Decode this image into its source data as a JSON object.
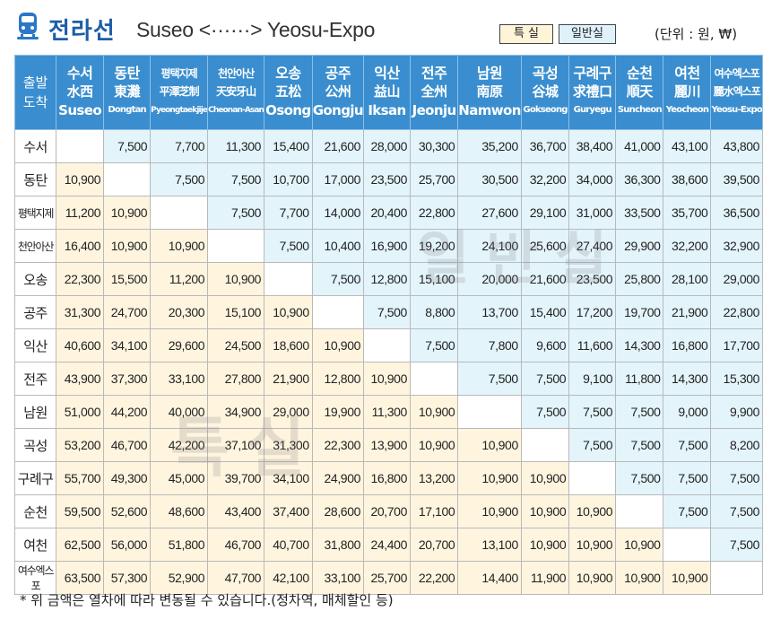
{
  "header": {
    "line_name": "전라선",
    "route": "Suseo <······> Yeosu-Expo",
    "legend_special": "특 실",
    "legend_normal": "일반실",
    "unit": "(단위 : 원, ₩)"
  },
  "corner": {
    "line1": "출발",
    "line2": "도착"
  },
  "stations": [
    {
      "ko": "수서",
      "cn": "水西",
      "en": "Suseo"
    },
    {
      "ko": "동탄",
      "cn": "東灘",
      "en": "Dongtan"
    },
    {
      "ko": "평택지제",
      "cn": "平澤芝制",
      "en": "Pyeongtaekjije"
    },
    {
      "ko": "천안아산",
      "cn": "天安牙山",
      "en": "Cheonan-Asan"
    },
    {
      "ko": "오송",
      "cn": "五松",
      "en": "Osong"
    },
    {
      "ko": "공주",
      "cn": "公州",
      "en": "Gongju"
    },
    {
      "ko": "익산",
      "cn": "益山",
      "en": "Iksan"
    },
    {
      "ko": "전주",
      "cn": "全州",
      "en": "Jeonju"
    },
    {
      "ko": "남원",
      "cn": "南原",
      "en": "Namwon"
    },
    {
      "ko": "곡성",
      "cn": "谷城",
      "en": "Gokseong"
    },
    {
      "ko": "구례구",
      "cn": "求禮口",
      "en": "Guryegu"
    },
    {
      "ko": "순천",
      "cn": "順天",
      "en": "Suncheon"
    },
    {
      "ko": "여천",
      "cn": "麗川",
      "en": "Yeocheon"
    },
    {
      "ko": "여수엑스포",
      "cn": "麗水엑스포",
      "en": "Yeosu-Expo"
    }
  ],
  "fares": [
    [
      "",
      "7,500",
      "7,700",
      "11,300",
      "15,400",
      "21,600",
      "28,000",
      "30,300",
      "35,200",
      "36,700",
      "38,400",
      "41,000",
      "43,100",
      "43,800"
    ],
    [
      "10,900",
      "",
      "7,500",
      "7,500",
      "10,700",
      "17,000",
      "23,500",
      "25,700",
      "30,500",
      "32,200",
      "34,000",
      "36,300",
      "38,600",
      "39,500"
    ],
    [
      "11,200",
      "10,900",
      "",
      "7,500",
      "7,700",
      "14,000",
      "20,400",
      "22,800",
      "27,600",
      "29,100",
      "31,000",
      "33,500",
      "35,700",
      "36,500"
    ],
    [
      "16,400",
      "10,900",
      "10,900",
      "",
      "7,500",
      "10,400",
      "16,900",
      "19,200",
      "24,100",
      "25,600",
      "27,400",
      "29,900",
      "32,200",
      "32,900"
    ],
    [
      "22,300",
      "15,500",
      "11,200",
      "10,900",
      "",
      "7,500",
      "12,800",
      "15,100",
      "20,000",
      "21,600",
      "23,500",
      "25,800",
      "28,100",
      "29,000"
    ],
    [
      "31,300",
      "24,700",
      "20,300",
      "15,100",
      "10,900",
      "",
      "7,500",
      "8,800",
      "13,700",
      "15,400",
      "17,200",
      "19,700",
      "21,900",
      "22,800"
    ],
    [
      "40,600",
      "34,100",
      "29,600",
      "24,500",
      "18,600",
      "10,900",
      "",
      "7,500",
      "7,800",
      "9,600",
      "11,600",
      "14,300",
      "16,800",
      "17,700"
    ],
    [
      "43,900",
      "37,300",
      "33,100",
      "27,800",
      "21,900",
      "12,800",
      "10,900",
      "",
      "7,500",
      "7,500",
      "9,100",
      "11,800",
      "14,300",
      "15,300"
    ],
    [
      "51,000",
      "44,200",
      "40,000",
      "34,900",
      "29,000",
      "19,900",
      "11,300",
      "10,900",
      "",
      "7,500",
      "7,500",
      "7,500",
      "9,000",
      "9,900"
    ],
    [
      "53,200",
      "46,700",
      "42,200",
      "37,100",
      "31,300",
      "22,300",
      "13,900",
      "10,900",
      "10,900",
      "",
      "7,500",
      "7,500",
      "7,500",
      "8,200"
    ],
    [
      "55,700",
      "49,300",
      "45,000",
      "39,700",
      "34,100",
      "24,900",
      "16,800",
      "13,200",
      "10,900",
      "10,900",
      "",
      "7,500",
      "7,500",
      "7,500"
    ],
    [
      "59,500",
      "52,600",
      "48,600",
      "43,400",
      "37,400",
      "28,600",
      "20,700",
      "17,100",
      "10,900",
      "10,900",
      "10,900",
      "",
      "7,500",
      "7,500"
    ],
    [
      "62,500",
      "56,000",
      "51,800",
      "46,700",
      "40,700",
      "31,800",
      "24,400",
      "20,700",
      "13,100",
      "10,900",
      "10,900",
      "10,900",
      "",
      "7,500"
    ],
    [
      "63,500",
      "57,300",
      "52,900",
      "47,700",
      "42,100",
      "33,100",
      "25,700",
      "22,200",
      "14,400",
      "11,900",
      "10,900",
      "10,900",
      "10,900",
      ""
    ]
  ],
  "watermark_normal": "일반실",
  "watermark_special": "특실",
  "footnote": "* 위 금액은 열차에 따라 변동될 수 있습니다.(정차역, 매체할인 등)",
  "colors": {
    "header_blue": "#3a8ecf",
    "normal_bg": "#e3f4fb",
    "special_bg": "#fff5df",
    "title_blue": "#1d5ea8"
  }
}
